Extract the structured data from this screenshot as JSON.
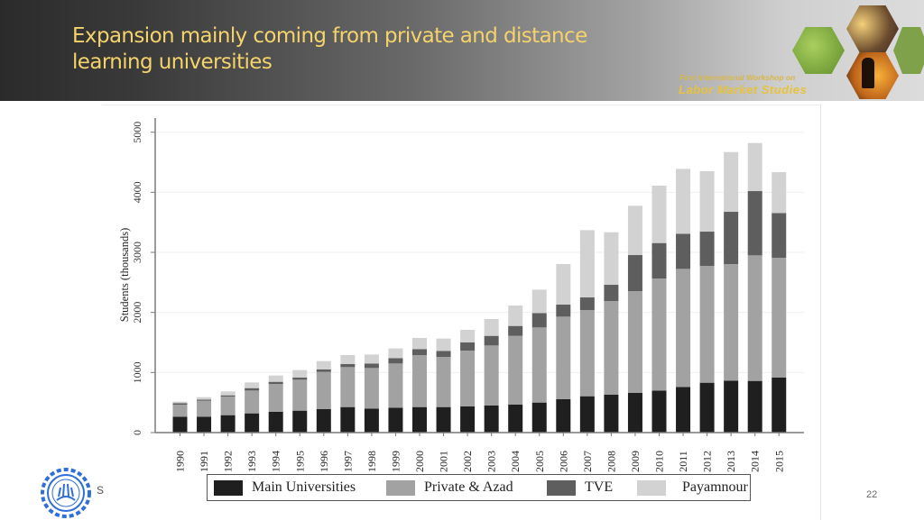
{
  "slide": {
    "title_line1": "Expansion mainly coming from private and distance",
    "title_line2": "learning universities",
    "brand_line1": "First International Workshop on",
    "brand_line2": "Labor Market Studies",
    "footer_text": "S",
    "page_number": "22",
    "logo_icon": "university-seal-icon"
  },
  "chart_data": {
    "type": "bar",
    "stacked": true,
    "title": "",
    "xlabel": "",
    "ylabel": "Students (thousands)",
    "ylim": [
      0,
      5000
    ],
    "yticks": [
      0,
      1000,
      2000,
      3000,
      4000,
      5000
    ],
    "grid": true,
    "legend_position": "bottom",
    "categories": [
      "1990",
      "1991",
      "1992",
      "1993",
      "1994",
      "1995",
      "1996",
      "1997",
      "1998",
      "1999",
      "2000",
      "2001",
      "2002",
      "2003",
      "2004",
      "2005",
      "2006",
      "2007",
      "2008",
      "2009",
      "2010",
      "2011",
      "2012",
      "2013",
      "2014",
      "2015"
    ],
    "series": [
      {
        "name": "Main Universities",
        "color": "#1f1f1f",
        "values": [
          265,
          265,
          290,
          320,
          345,
          365,
          390,
          425,
          400,
          415,
          425,
          425,
          435,
          450,
          465,
          500,
          555,
          605,
          630,
          660,
          700,
          760,
          830,
          865,
          860,
          915
        ]
      },
      {
        "name": "Private & Azad",
        "color": "#a2a2a2",
        "values": [
          200,
          265,
          310,
          380,
          465,
          515,
          620,
          665,
          675,
          735,
          865,
          835,
          930,
          1000,
          1145,
          1250,
          1375,
          1435,
          1560,
          1695,
          1865,
          1965,
          1945,
          1940,
          2090,
          1995
        ]
      },
      {
        "name": "TVE",
        "color": "#5e5e5e",
        "values": [
          25,
          20,
          20,
          40,
          35,
          35,
          40,
          50,
          75,
          90,
          100,
          100,
          135,
          160,
          165,
          240,
          200,
          210,
          270,
          600,
          590,
          585,
          570,
          870,
          1070,
          745
        ]
      },
      {
        "name": "Payamnour",
        "color": "#d2d2d2",
        "values": [
          25,
          40,
          65,
          95,
          105,
          125,
          140,
          150,
          150,
          160,
          185,
          205,
          210,
          280,
          340,
          390,
          675,
          1120,
          875,
          820,
          955,
          1080,
          1005,
          995,
          800,
          680
        ]
      }
    ]
  }
}
